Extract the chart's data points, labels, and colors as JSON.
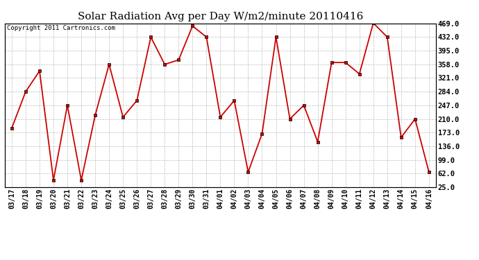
{
  "title": "Solar Radiation Avg per Day W/m2/minute 20110416",
  "copyright": "Copyright 2011 Cartronics.com",
  "dates": [
    "03/17",
    "03/18",
    "03/19",
    "03/20",
    "03/21",
    "03/22",
    "03/23",
    "03/24",
    "03/25",
    "03/26",
    "03/27",
    "03/28",
    "03/29",
    "03/30",
    "03/31",
    "04/01",
    "04/02",
    "04/03",
    "04/04",
    "04/05",
    "04/06",
    "04/07",
    "04/08",
    "04/09",
    "04/10",
    "04/11",
    "04/12",
    "04/13",
    "04/14",
    "04/15",
    "04/16"
  ],
  "values": [
    185,
    284,
    340,
    44,
    247,
    44,
    220,
    358,
    215,
    260,
    432,
    358,
    370,
    462,
    432,
    215,
    260,
    66,
    170,
    432,
    210,
    247,
    148,
    363,
    363,
    332,
    470,
    432,
    160,
    210,
    66
  ],
  "line_color": "#cc0000",
  "marker_color": "#cc0000",
  "marker_size": 3,
  "bg_color": "#ffffff",
  "grid_color": "#aaaaaa",
  "title_fontsize": 11,
  "copyright_fontsize": 6.5,
  "yticks": [
    25.0,
    62.0,
    99.0,
    136.0,
    173.0,
    210.0,
    247.0,
    284.0,
    321.0,
    358.0,
    395.0,
    432.0,
    469.0
  ],
  "ylim": [
    25.0,
    469.0
  ],
  "ylabel_fontsize": 7.5,
  "xlabel_fontsize": 7
}
